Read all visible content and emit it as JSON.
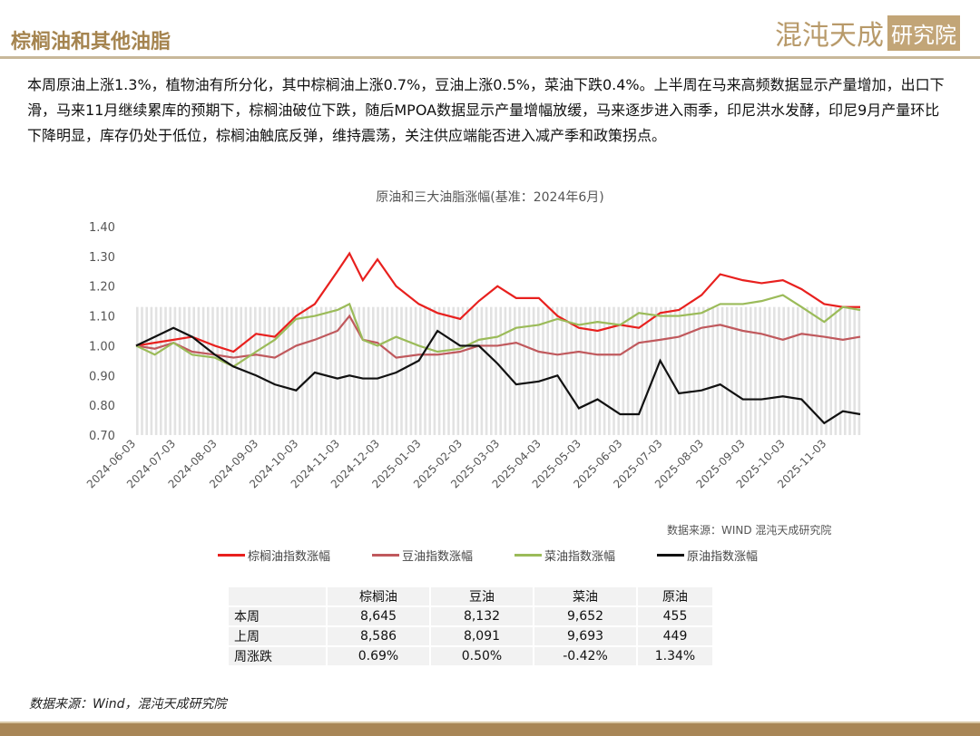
{
  "header": {
    "title": "棕榈油和其他油脂",
    "logo_text": "混沌天成",
    "logo_box": "研究院"
  },
  "summary": "本周原油上涨1.3%，植物油有所分化，其中棕榈油上涨0.7%，豆油上涨0.5%，菜油下跌0.4%。上半周在马来高频数据显示产量增加，出口下滑，马来11月继续累库的预期下，棕榈油破位下跌，随后MPOA数据显示产量增幅放缓，马来逐步进入雨季，印尼洪水发酵，印尼9月产量环比下降明显，库存仍处于低位，棕榈油触底反弹，维持震荡，关注供应端能否进入减产季和政策拐点。",
  "chart_data": {
    "type": "line",
    "title": "原油和三大油脂涨幅(基准：2024年6月)",
    "ylim": [
      0.7,
      1.4
    ],
    "yticks": [
      "0.70",
      "0.80",
      "0.90",
      "1.00",
      "1.10",
      "1.20",
      "1.30",
      "1.40"
    ],
    "xticks": [
      "2024-06-03",
      "2024-07-03",
      "2024-08-03",
      "2024-09-03",
      "2024-10-03",
      "2024-11-03",
      "2024-12-03",
      "2025-01-03",
      "2025-02-03",
      "2025-03-03",
      "2025-04-03",
      "2025-05-03",
      "2025-06-03",
      "2025-07-03",
      "2025-08-03",
      "2025-09-03",
      "2025-10-03",
      "2025-11-03"
    ],
    "x": [
      "2024-06-03",
      "2024-06-17",
      "2024-07-01",
      "2024-07-15",
      "2024-08-01",
      "2024-08-15",
      "2024-09-01",
      "2024-09-15",
      "2024-10-01",
      "2024-10-15",
      "2024-11-01",
      "2024-11-10",
      "2024-11-20",
      "2024-12-01",
      "2024-12-15",
      "2025-01-01",
      "2025-01-15",
      "2025-02-01",
      "2025-02-15",
      "2025-03-01",
      "2025-03-15",
      "2025-04-01",
      "2025-04-15",
      "2025-05-01",
      "2025-05-15",
      "2025-06-01",
      "2025-06-15",
      "2025-07-01",
      "2025-07-15",
      "2025-08-01",
      "2025-08-15",
      "2025-09-01",
      "2025-09-15",
      "2025-10-01",
      "2025-10-15",
      "2025-11-01",
      "2025-11-15",
      "2025-11-28"
    ],
    "series": [
      {
        "name": "棕榈油指数涨幅",
        "color": "#e8201e",
        "values": [
          1.0,
          1.01,
          1.02,
          1.03,
          1.0,
          0.98,
          1.04,
          1.03,
          1.1,
          1.14,
          1.25,
          1.31,
          1.22,
          1.29,
          1.2,
          1.14,
          1.11,
          1.09,
          1.15,
          1.2,
          1.16,
          1.16,
          1.1,
          1.06,
          1.05,
          1.07,
          1.06,
          1.11,
          1.12,
          1.17,
          1.24,
          1.22,
          1.21,
          1.22,
          1.19,
          1.14,
          1.13,
          1.13
        ]
      },
      {
        "name": "豆油指数涨幅",
        "color": "#c0595d",
        "values": [
          1.0,
          0.99,
          1.01,
          0.98,
          0.97,
          0.96,
          0.97,
          0.96,
          1.0,
          1.02,
          1.05,
          1.1,
          1.02,
          1.01,
          0.96,
          0.97,
          0.97,
          0.98,
          1.0,
          1.0,
          1.01,
          0.98,
          0.97,
          0.98,
          0.97,
          0.97,
          1.01,
          1.02,
          1.03,
          1.06,
          1.07,
          1.05,
          1.04,
          1.02,
          1.04,
          1.03,
          1.02,
          1.03
        ]
      },
      {
        "name": "菜油指数涨幅",
        "color": "#9bbb59",
        "values": [
          1.0,
          0.97,
          1.01,
          0.97,
          0.96,
          0.93,
          0.98,
          1.02,
          1.09,
          1.1,
          1.12,
          1.14,
          1.02,
          1.0,
          1.03,
          1.0,
          0.98,
          0.99,
          1.02,
          1.03,
          1.06,
          1.07,
          1.09,
          1.07,
          1.08,
          1.07,
          1.11,
          1.1,
          1.1,
          1.11,
          1.14,
          1.14,
          1.15,
          1.17,
          1.13,
          1.08,
          1.13,
          1.12
        ]
      },
      {
        "name": "原油指数涨幅",
        "color": "#111111",
        "values": [
          1.0,
          1.03,
          1.06,
          1.03,
          0.97,
          0.93,
          0.9,
          0.87,
          0.85,
          0.91,
          0.89,
          0.9,
          0.89,
          0.89,
          0.91,
          0.95,
          1.05,
          1.0,
          1.0,
          0.94,
          0.87,
          0.88,
          0.9,
          0.79,
          0.82,
          0.77,
          0.77,
          0.95,
          0.84,
          0.85,
          0.87,
          0.82,
          0.82,
          0.83,
          0.82,
          0.74,
          0.78,
          0.77
        ]
      }
    ],
    "source": "数据来源：WIND 混沌天成研究院"
  },
  "table": {
    "headers": [
      "",
      "棕榈油",
      "豆油",
      "菜油",
      "原油"
    ],
    "rows": [
      [
        "本周",
        "8,645",
        "8,132",
        "9,652",
        "455"
      ],
      [
        "上周",
        "8,586",
        "8,091",
        "9,693",
        "449"
      ],
      [
        "周涨跌",
        "0.69%",
        "0.50%",
        "-0.42%",
        "1.34%"
      ]
    ]
  },
  "footer_source": "数据来源：Wind，混沌天成研究院"
}
